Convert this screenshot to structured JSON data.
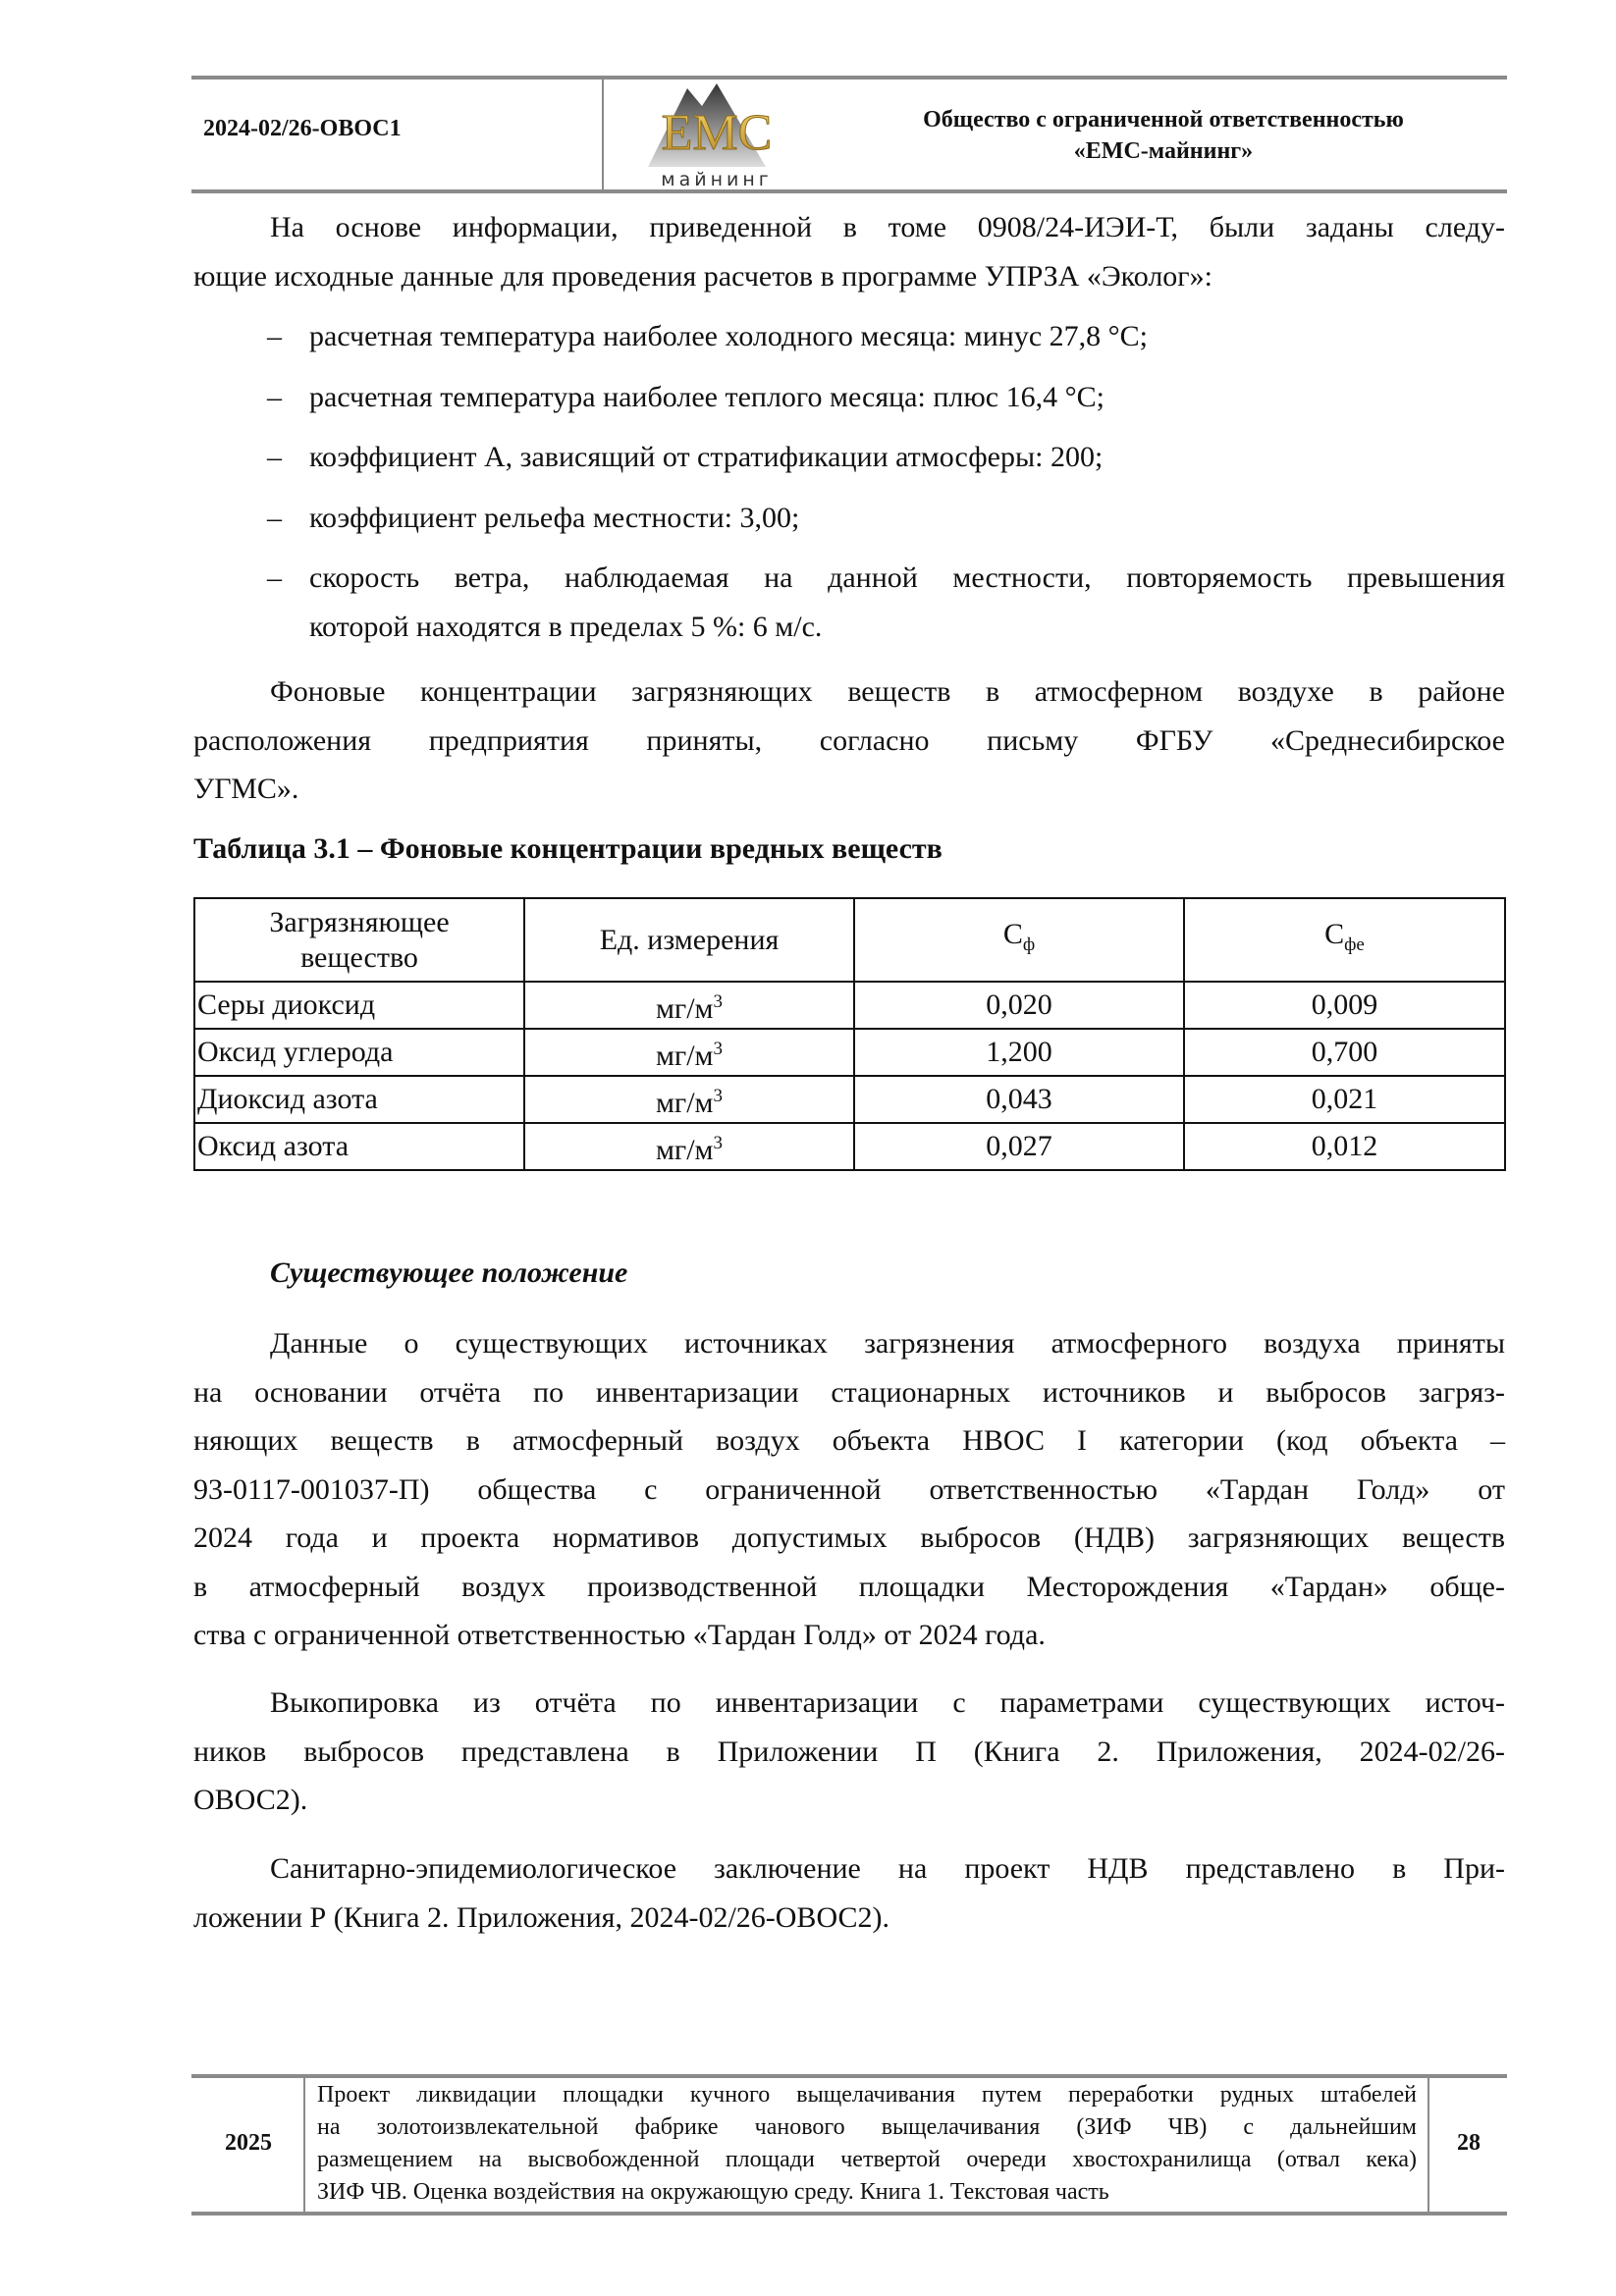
{
  "header": {
    "code": "2024-02/26-ОВОС1",
    "logo_text": "EMC майнинг",
    "org_line1": "Общество с ограниченной ответственностью",
    "org_line2": "«ЕМС-майнинг»"
  },
  "para1": [
    "На основе информации, приведенной в томе 0908/24-ИЭИ-Т, были заданы следу-",
    "ющие исходные данные для проведения расчетов в программе УПРЗА «Эколог»:"
  ],
  "bullets": [
    {
      "lines": [
        "расчетная температура наиболее холодного месяца: минус 27,8 °С;"
      ]
    },
    {
      "lines": [
        "расчетная температура наиболее теплого месяца: плюс 16,4 °С;"
      ]
    },
    {
      "lines": [
        "коэффициент А, зависящий от стратификации атмосферы: 200;"
      ]
    },
    {
      "lines": [
        "коэффициент рельефа местности: 3,00;"
      ]
    },
    {
      "lines": [
        "скорость ветра, наблюдаемая на данной местности, повторяемость превышения",
        "которой находятся в пределах 5 %: 6 м/с."
      ]
    }
  ],
  "dash": "–",
  "para2": [
    "Фоновые концентрации загрязняющих веществ в атмосферном воздухе в районе",
    "расположения предприятия приняты, согласно письму ФГБУ «Среднесибирское",
    "УГМС»."
  ],
  "table": {
    "caption": "Таблица 3.1 – Фоновые концентрации вредных веществ",
    "headers": {
      "substance_l1": "Загрязняющее",
      "substance_l2": "вещество",
      "unit": "Ед. измерения",
      "cf": "С",
      "cf_sub": "ф",
      "cfe": "С",
      "cfe_sub": "фе"
    },
    "rows": [
      {
        "name": "Серы диоксид",
        "unit": "мг/м",
        "sup": "3",
        "cf": "0,020",
        "cfe": "0,009"
      },
      {
        "name": "Оксид углерода",
        "unit": "мг/м",
        "sup": "3",
        "cf": "1,200",
        "cfe": "0,700"
      },
      {
        "name": "Диоксид азота",
        "unit": "мг/м",
        "sup": "3",
        "cf": "0,043",
        "cfe": "0,021"
      },
      {
        "name": "Оксид азота",
        "unit": "мг/м",
        "sup": "3",
        "cf": "0,027",
        "cfe": "0,012"
      }
    ]
  },
  "section_title": "Существующее положение",
  "para3": [
    "Данные о существующих источниках загрязнения атмосферного воздуха приняты",
    "на основании отчёта по инвентаризации стационарных источников и выбросов загряз-",
    "няющих веществ в атмосферный воздух объекта НВОС I категории (код объекта –",
    "93-0117-001037-П) общества с ограниченной ответственностью «Тардан Голд» от",
    "2024 года и проекта нормативов допустимых выбросов (НДВ) загрязняющих веществ",
    "в атмосферный воздух производственной площадки Месторождения «Тардан» обще-",
    "ства с ограниченной ответственностью «Тардан Голд» от 2024 года."
  ],
  "para4": [
    "Выкопировка из отчёта по инвентаризации с параметрами существующих источ-",
    "ников выбросов представлена в Приложении П (Книга 2. Приложения, 2024-02/26-",
    "ОВОС2)."
  ],
  "para5": [
    "Санитарно-эпидемиологическое заключение на проект НДВ представлено в При-",
    "ложении Р (Книга 2. Приложения, 2024-02/26-ОВОС2)."
  ],
  "footer": {
    "year": "2025",
    "page": "28",
    "lines": [
      "Проект ликвидации площадки кучного выщелачивания путем переработки рудных штабелей",
      "на золотоизвлекательной фабрике чанового выщелачивания (ЗИФ ЧВ) с дальнейшим",
      "размещением на высвобожденной площади четвертой очереди хвостохранилища (отвал кека)",
      "ЗИФ ЧВ. Оценка воздействия на окружающую среду. Книга 1. Текстовая часть"
    ]
  }
}
